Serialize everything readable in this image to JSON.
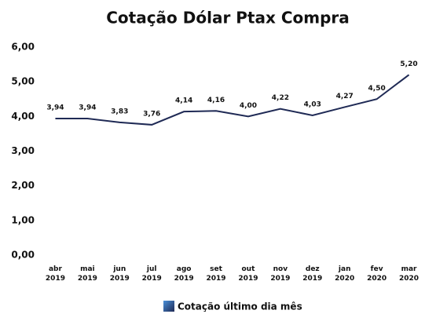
{
  "chart_data": {
    "type": "line",
    "title": "Cotação Dólar Ptax Compra",
    "categories": [
      "abr 2019",
      "mai 2019",
      "jun 2019",
      "jul 2019",
      "ago 2019",
      "set 2019",
      "out 2019",
      "nov 2019",
      "dez 2019",
      "jan 2020",
      "fev 2020",
      "mar 2020"
    ],
    "series": [
      {
        "name": "Cotação último dia mês",
        "color": "#1f2a55",
        "values": [
          3.94,
          3.94,
          3.83,
          3.76,
          4.14,
          4.16,
          4.0,
          4.22,
          4.03,
          4.27,
          4.5,
          5.2
        ],
        "value_labels": [
          "3,94",
          "3,94",
          "3,83",
          "3,76",
          "4,14",
          "4,16",
          "4,00",
          "4,22",
          "4,03",
          "4,27",
          "4,50",
          "5,20"
        ]
      }
    ],
    "ylim": [
      0,
      6
    ],
    "yticks": [
      {
        "value": 0,
        "label": "0,00"
      },
      {
        "value": 1,
        "label": "1,00"
      },
      {
        "value": 2,
        "label": "2,00"
      },
      {
        "value": 3,
        "label": "3,00"
      },
      {
        "value": 4,
        "label": "4,00"
      },
      {
        "value": 5,
        "label": "5,00"
      },
      {
        "value": 6,
        "label": "6,00"
      }
    ],
    "grid": false
  }
}
